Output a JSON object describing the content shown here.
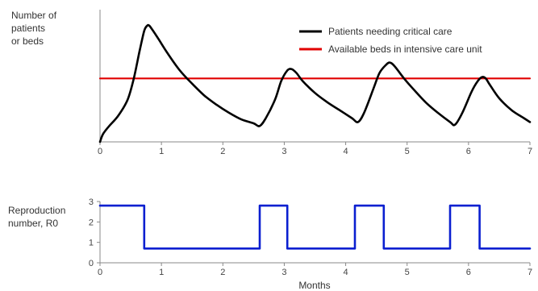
{
  "chart_data": [
    {
      "type": "line",
      "ylabel_lines": [
        "Number of",
        "patients",
        "or beds"
      ],
      "xlim": [
        0,
        7
      ],
      "x_ticks": [
        "0",
        "1",
        "2",
        "3",
        "4",
        "5",
        "6",
        "7"
      ],
      "ylim": [
        0,
        100
      ],
      "legend_position": "top-right",
      "series": [
        {
          "name": "Patients needing critical care",
          "color": "#000000",
          "x": [
            0,
            0.05,
            0.15,
            0.3,
            0.45,
            0.55,
            0.65,
            0.72,
            0.77,
            0.8,
            0.85,
            0.95,
            1.1,
            1.3,
            1.5,
            1.7,
            1.9,
            2.1,
            2.3,
            2.5,
            2.6,
            2.7,
            2.85,
            2.95,
            3.05,
            3.12,
            3.2,
            3.3,
            3.5,
            3.7,
            3.9,
            4.1,
            4.2,
            4.3,
            4.45,
            4.55,
            4.65,
            4.72,
            4.8,
            4.95,
            5.1,
            5.3,
            5.5,
            5.7,
            5.78,
            5.9,
            6.05,
            6.15,
            6.22,
            6.28,
            6.35,
            6.5,
            6.7,
            6.9,
            7.0
          ],
          "y": [
            0,
            6,
            12,
            20,
            32,
            48,
            70,
            84,
            88,
            88,
            85,
            78,
            67,
            54,
            44,
            35,
            28,
            22,
            17,
            14,
            12,
            18,
            32,
            46,
            54,
            55,
            52,
            46,
            37,
            30,
            24,
            18,
            15,
            22,
            40,
            52,
            58,
            60,
            57,
            48,
            40,
            30,
            22,
            15,
            13,
            22,
            38,
            46,
            49,
            48,
            43,
            33,
            24,
            18,
            15
          ]
        },
        {
          "name": "Available beds in intensive care unit",
          "color": "#e10000",
          "x": [
            0,
            7
          ],
          "y": [
            48,
            48
          ]
        }
      ]
    },
    {
      "type": "line",
      "ylabel_lines": [
        "Reproduction",
        "number, R0"
      ],
      "xlabel": "Months",
      "xlim": [
        0,
        7
      ],
      "ylim": [
        0,
        3
      ],
      "x_ticks": [
        "0",
        "1",
        "2",
        "3",
        "4",
        "5",
        "6",
        "7"
      ],
      "y_ticks": [
        "0",
        "1",
        "2",
        "3"
      ],
      "series": [
        {
          "color": "#0a1fd0",
          "x": [
            0,
            0.72,
            0.72,
            2.6,
            2.6,
            3.05,
            3.05,
            4.15,
            4.15,
            4.62,
            4.62,
            5.7,
            5.7,
            6.18,
            6.18,
            7.0
          ],
          "y": [
            2.8,
            2.8,
            0.7,
            0.7,
            2.8,
            2.8,
            0.7,
            0.7,
            2.8,
            2.8,
            0.7,
            0.7,
            2.8,
            2.8,
            0.7,
            0.7
          ]
        }
      ]
    }
  ]
}
